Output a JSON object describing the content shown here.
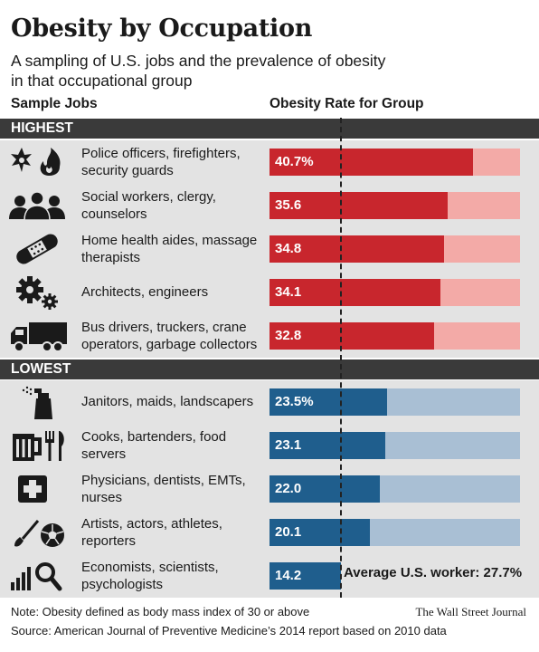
{
  "header": {
    "title": "Obesity by Occupation",
    "subtitle": "A sampling of U.S. jobs and the prevalence of obesity in that occupational group",
    "col_jobs": "Sample Jobs",
    "col_rate": "Obesity Rate for Group"
  },
  "sections": {
    "highest": "HIGHEST",
    "lowest": "LOWEST"
  },
  "average_label": "Average U.S. worker: 27.7%",
  "footer": {
    "note": "Note: Obesity defined as body mass index of 30 or above",
    "source": "Source: American Journal of Preventive Medicine’s 2014 report based on 2010 data",
    "credit": "The Wall Street Journal"
  },
  "colors": {
    "high_fill": "#c8262d",
    "high_track": "#f3aaa7",
    "low_fill": "#1f5e8d",
    "low_track": "#a9bfd4",
    "row_bg": "#e3e3e3",
    "band_bg": "#3a3a3a"
  },
  "chart_data": {
    "type": "bar",
    "orientation": "horizontal",
    "title": "Obesity by Occupation",
    "xlim": [
      0,
      50
    ],
    "reference": {
      "label": "Average U.S. worker",
      "value": 27.7
    },
    "categories": [
      "Police officers, firefighters, security guards",
      "Social workers, clergy, counselors",
      "Home health aides, massage therapists",
      "Architects, engineers",
      "Bus drivers, truckers, crane operators, garbage collectors",
      "Janitors, maids, landscapers",
      "Cooks, bartenders, food servers",
      "Physicians, dentists, EMTs, nurses",
      "Artists, actors, athletes, reporters",
      "Economists, scientists, psychologists"
    ],
    "values": [
      40.7,
      35.6,
      34.8,
      34.1,
      32.8,
      23.5,
      23.1,
      22.0,
      20.1,
      14.2
    ],
    "value_labels": [
      "40.7%",
      "35.6",
      "34.8",
      "34.1",
      "32.8",
      "23.5%",
      "23.1",
      "22.0",
      "20.1",
      "14.2"
    ],
    "groups": [
      "HIGHEST",
      "HIGHEST",
      "HIGHEST",
      "HIGHEST",
      "HIGHEST",
      "LOWEST",
      "LOWEST",
      "LOWEST",
      "LOWEST",
      "LOWEST"
    ],
    "icons": [
      "badge-flame-icon",
      "people-icon",
      "bandage-icon",
      "gears-icon",
      "truck-icon",
      "spray-bottle-icon",
      "mug-fork-knife-icon",
      "medical-cross-icon",
      "brush-ball-icon",
      "bars-magnifier-icon"
    ]
  }
}
